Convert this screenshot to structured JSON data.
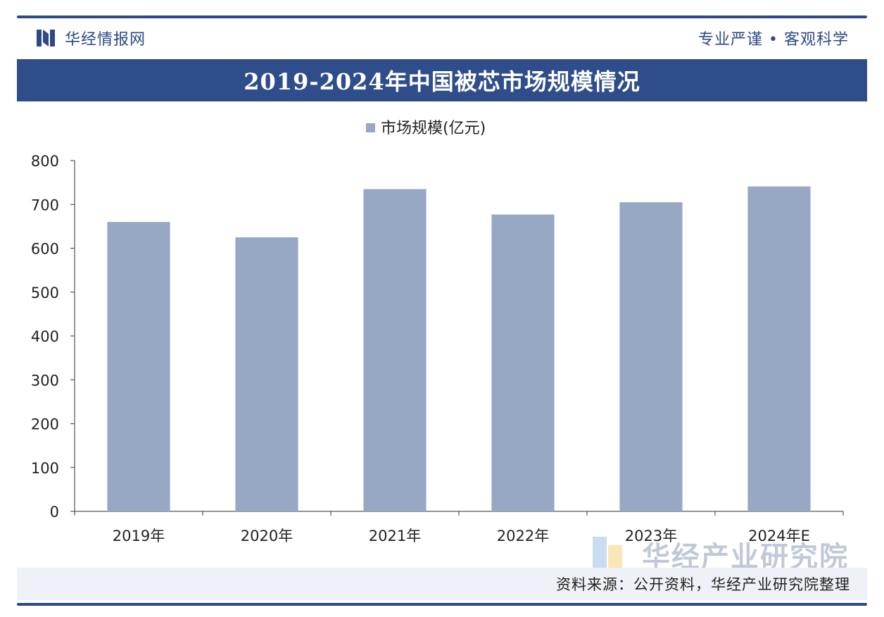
{
  "header": {
    "brand_name": "华经情报网",
    "slogan": "专业严谨 • 客观科学"
  },
  "title": "2019-2024年中国被芯市场规模情况",
  "chart_data": {
    "type": "bar",
    "categories": [
      "2019年",
      "2020年",
      "2021年",
      "2022年",
      "2023年",
      "2024年E"
    ],
    "series": [
      {
        "name": "市场规模(亿元)",
        "values": [
          660,
          625,
          735,
          677,
          705,
          741
        ],
        "color": "#97a8c4"
      }
    ],
    "ylim": [
      0,
      800
    ],
    "yticks": [
      0,
      100,
      200,
      300,
      400,
      500,
      600,
      700,
      800
    ],
    "legend_position": "top-center",
    "grid": false
  },
  "source": "资料来源：公开资料，华经产业研究院整理",
  "watermark": {
    "corner_text": "华经产业研究院"
  },
  "colors": {
    "brand": "#2b4a86",
    "title_bar": "#2e4d8a",
    "bar": "#97a8c4"
  }
}
